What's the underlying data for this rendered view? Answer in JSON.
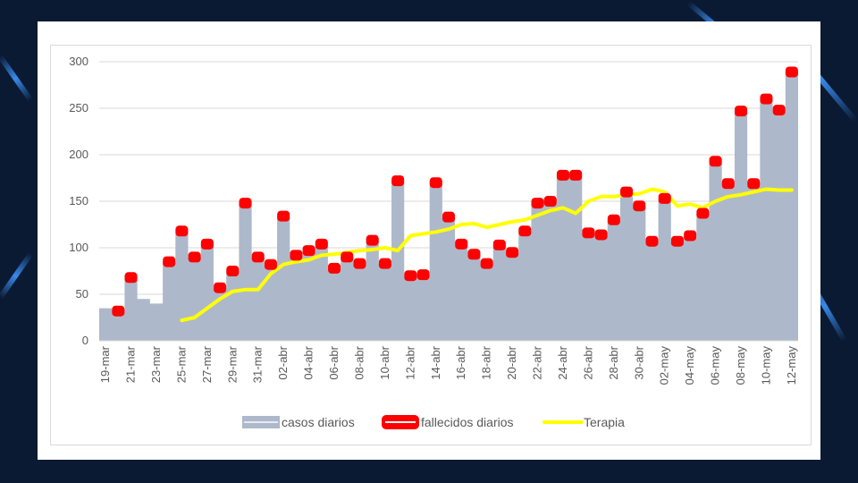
{
  "colors": {
    "background": "#0b1a33",
    "cases_area": "#adb9ca",
    "deaths_marker": "#ff0000",
    "therapy_line": "#ffff00",
    "grid": "#d9d9d9",
    "text": "#595959"
  },
  "chart_data": {
    "type": "area",
    "title": "",
    "xlabel": "",
    "ylabel": "",
    "ylim": [
      0,
      300
    ],
    "yticks": [
      0,
      50,
      100,
      150,
      200,
      250,
      300
    ],
    "grid": true,
    "legend_position": "bottom",
    "x": [
      "19-mar",
      "20-mar",
      "21-mar",
      "22-mar",
      "23-mar",
      "24-mar",
      "25-mar",
      "26-mar",
      "27-mar",
      "28-mar",
      "29-mar",
      "30-mar",
      "31-mar",
      "01-abr",
      "02-abr",
      "03-abr",
      "04-abr",
      "05-abr",
      "06-abr",
      "07-abr",
      "08-abr",
      "09-abr",
      "10-abr",
      "11-abr",
      "12-abr",
      "13-abr",
      "14-abr",
      "15-abr",
      "16-abr",
      "17-abr",
      "18-abr",
      "19-abr",
      "20-abr",
      "21-abr",
      "22-abr",
      "23-abr",
      "24-abr",
      "25-abr",
      "26-abr",
      "27-abr",
      "28-abr",
      "29-abr",
      "30-abr",
      "01-may",
      "02-may",
      "03-may",
      "04-may",
      "05-may",
      "06-may",
      "07-may",
      "08-may",
      "09-may",
      "10-may",
      "11-may",
      "12-may"
    ],
    "x_tick_labels": [
      "19-mar",
      "21-mar",
      "23-mar",
      "25-mar",
      "27-mar",
      "29-mar",
      "31-mar",
      "02-abr",
      "04-abr",
      "06-abr",
      "08-abr",
      "10-abr",
      "12-abr",
      "14-abr",
      "16-abr",
      "18-abr",
      "20-abr",
      "22-abr",
      "24-abr",
      "26-abr",
      "28-abr",
      "30-abr",
      "02-may",
      "04-may",
      "06-may",
      "08-may",
      "10-may",
      "12-may"
    ],
    "series": [
      {
        "name": "casos diarios",
        "type": "area",
        "color": "#adb9ca",
        "values": [
          35,
          33,
          70,
          45,
          40,
          85,
          120,
          90,
          105,
          57,
          75,
          150,
          90,
          80,
          135,
          90,
          95,
          105,
          78,
          90,
          82,
          110,
          83,
          172,
          70,
          72,
          172,
          132,
          105,
          93,
          83,
          103,
          95,
          120,
          150,
          152,
          180,
          180,
          115,
          113,
          130,
          160,
          145,
          107,
          152,
          107,
          110,
          137,
          195,
          170,
          248,
          170,
          260,
          248,
          290
        ]
      },
      {
        "name": "fallecidos diarios",
        "type": "marker",
        "color": "#ff0000",
        "values": [
          null,
          32,
          68,
          null,
          null,
          85,
          118,
          90,
          104,
          57,
          75,
          148,
          90,
          82,
          134,
          92,
          97,
          104,
          78,
          90,
          83,
          108,
          83,
          172,
          70,
          71,
          170,
          133,
          104,
          93,
          83,
          103,
          95,
          118,
          148,
          150,
          178,
          178,
          116,
          114,
          130,
          160,
          145,
          107,
          153,
          107,
          113,
          137,
          193,
          169,
          247,
          169,
          260,
          248,
          289
        ]
      },
      {
        "name": "Terapia",
        "type": "line",
        "color": "#ffff00",
        "values": [
          null,
          null,
          null,
          null,
          null,
          null,
          22,
          25,
          35,
          45,
          53,
          55,
          55,
          72,
          82,
          85,
          87,
          92,
          93,
          95,
          97,
          98,
          100,
          97,
          113,
          115,
          117,
          120,
          125,
          126,
          122,
          125,
          128,
          130,
          135,
          140,
          143,
          137,
          150,
          155,
          155,
          157,
          158,
          163,
          160,
          145,
          147,
          143,
          150,
          155,
          157,
          160,
          163,
          162,
          162
        ]
      }
    ]
  }
}
